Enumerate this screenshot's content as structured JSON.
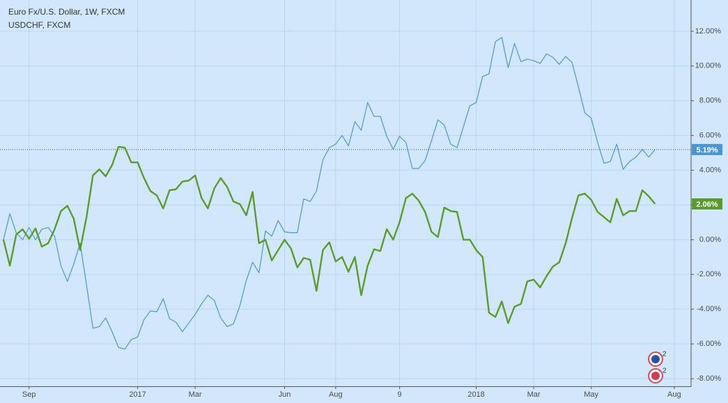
{
  "chart_data": {
    "type": "line",
    "categories": [
      null,
      null,
      null,
      null,
      "Sep",
      null,
      null,
      null,
      null,
      null,
      null,
      null,
      null,
      null,
      null,
      null,
      null,
      null,
      null,
      null,
      null,
      "2017",
      null,
      null,
      null,
      null,
      null,
      null,
      null,
      null,
      "Mar",
      null,
      null,
      null,
      null,
      null,
      null,
      null,
      null,
      null,
      null,
      null,
      null,
      null,
      "Jun",
      null,
      null,
      null,
      null,
      null,
      null,
      null,
      "Aug",
      null,
      null,
      null,
      null,
      null,
      null,
      null,
      null,
      null,
      "9",
      null,
      null,
      null,
      null,
      null,
      null,
      null,
      null,
      null,
      null,
      null,
      "2018",
      null,
      null,
      null,
      null,
      null,
      null,
      null,
      null,
      "Mar",
      null,
      null,
      null,
      null,
      null,
      null,
      null,
      null,
      "May",
      null,
      null,
      null,
      null,
      null,
      null,
      null,
      null,
      null,
      null,
      null,
      null,
      "Aug"
    ],
    "series": [
      {
        "name": "Euro Fx/U.S. Dollar, 1W, FXCM",
        "color": "#4a95d6",
        "last_value_label": "5.19%",
        "values": [
          0,
          1.5,
          0.4,
          0,
          0.7,
          0,
          0.6,
          0.7,
          0.2,
          -1.5,
          -2.4,
          -1.4,
          -0.2,
          -2.6,
          -5.1,
          -5.0,
          -4.5,
          -5.3,
          -6.2,
          -6.3,
          -5.75,
          -5.6,
          -4.6,
          -4.1,
          -4.15,
          -3.4,
          -4.55,
          -4.75,
          -5.3,
          -4.8,
          -4.3,
          -3.7,
          -3.2,
          -3.5,
          -4.5,
          -5.0,
          -4.85,
          -3.8,
          -2.35,
          -1.3,
          -1.9,
          0.5,
          0.2,
          1.1,
          0.45,
          0.4,
          0.4,
          2.35,
          2.2,
          2.8,
          4.6,
          5.3,
          5.5,
          6.0,
          5.4,
          6.8,
          6.3,
          7.9,
          7.1,
          7.1,
          5.95,
          5.2,
          5.95,
          5.6,
          4.1,
          4.1,
          4.55,
          5.7,
          6.9,
          6.6,
          5.5,
          5.3,
          6.5,
          7.7,
          7.9,
          9.4,
          9.55,
          11.4,
          11.65,
          9.9,
          11.3,
          10.25,
          10.4,
          10.3,
          10.15,
          10.7,
          10.5,
          10.1,
          10.55,
          10.2,
          8.8,
          7.3,
          7.0,
          5.6,
          4.4,
          4.5,
          5.5,
          4.05,
          4.5,
          4.75,
          5.2,
          4.75,
          5.19,
          null,
          null,
          null
        ]
      },
      {
        "name": "USDCHF, FXCM",
        "color": "#5b9a2c",
        "last_value_label": "2.06%",
        "values": [
          0,
          -1.5,
          0.3,
          0.6,
          0.05,
          0.65,
          -0.4,
          -0.2,
          0.6,
          1.65,
          1.95,
          1.2,
          -0.6,
          1.3,
          3.7,
          4.05,
          3.65,
          4.3,
          5.35,
          5.3,
          4.45,
          4.45,
          3.55,
          2.8,
          2.55,
          1.8,
          2.85,
          2.9,
          3.35,
          3.4,
          3.7,
          2.4,
          1.8,
          2.95,
          3.55,
          3.05,
          2.2,
          2.05,
          1.4,
          2.75,
          -0.2,
          0,
          -1.2,
          -0.6,
          0,
          -0.5,
          -1.6,
          -1.05,
          -1.15,
          -2.95,
          -0.6,
          -0.15,
          -1.25,
          -1.0,
          -1.85,
          -1.0,
          -3.2,
          -1.5,
          -0.55,
          -0.65,
          0.6,
          0,
          1.0,
          2.4,
          2.65,
          2.25,
          1.6,
          0.45,
          0.15,
          1.85,
          1.65,
          1.6,
          0,
          0,
          -0.6,
          -1.0,
          -4.2,
          -4.45,
          -3.55,
          -4.8,
          -3.85,
          -3.7,
          -2.4,
          -2.3,
          -2.75,
          -2.1,
          -1.55,
          -1.3,
          -0.2,
          1.25,
          2.55,
          2.65,
          2.3,
          1.6,
          1.3,
          1.0,
          2.35,
          1.4,
          1.65,
          1.65,
          2.85,
          2.5,
          2.06,
          null,
          null,
          null
        ]
      }
    ],
    "ylim": [
      -8.44,
      13.8
    ],
    "yticks": [
      {
        "value": 12,
        "label": "12.00%"
      },
      {
        "value": 10,
        "label": "10.00%"
      },
      {
        "value": 8,
        "label": "8.00%"
      },
      {
        "value": 6,
        "label": "6.00%"
      },
      {
        "value": 4,
        "label": "4.00%"
      },
      {
        "value": 2,
        "label": "2.00%"
      },
      {
        "value": 0,
        "label": "0.00%"
      },
      {
        "value": -2,
        "label": "-2.00%"
      },
      {
        "value": -4,
        "label": "-4.00%"
      },
      {
        "value": -6,
        "label": "-6.00%"
      },
      {
        "value": -8,
        "label": "-8.00%"
      }
    ],
    "grid": true,
    "annotations": [
      "2",
      "2"
    ]
  }
}
